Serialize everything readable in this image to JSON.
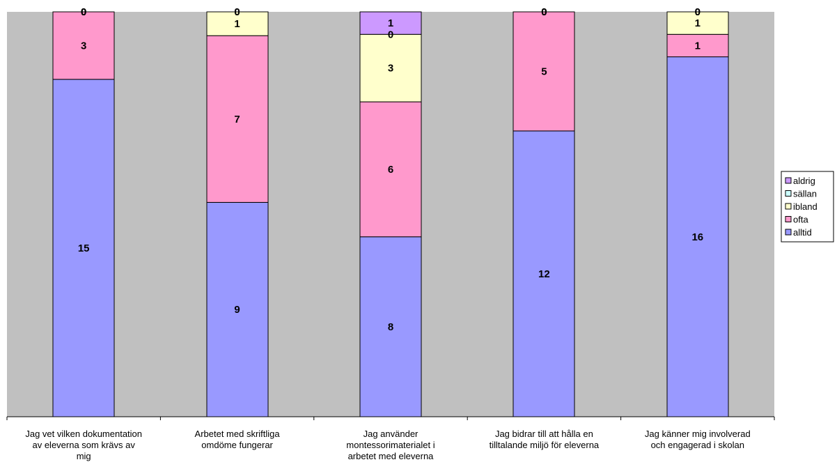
{
  "chart_data": {
    "type": "bar",
    "stacked": true,
    "categories": [
      [
        "Jag vet vilken dokumentation",
        "av eleverna som krävs av",
        "mig"
      ],
      [
        "Arbetet med skriftliga",
        "omdöme fungerar"
      ],
      [
        "Jag använder",
        "montessorimaterialet i",
        "arbetet med eleverna"
      ],
      [
        "Jag bidrar till att hålla en",
        "tilltalande miljö för eleverna"
      ],
      [
        "Jag känner mig involverad",
        "och engagerad i skolan"
      ]
    ],
    "series": [
      {
        "name": "alltid",
        "color": "#9999ff",
        "values": [
          15,
          9,
          8,
          12,
          16
        ]
      },
      {
        "name": "ofta",
        "color": "#ff99cc",
        "values": [
          3,
          7,
          6,
          5,
          1
        ]
      },
      {
        "name": "ibland",
        "color": "#ffffcc",
        "values": [
          0,
          1,
          3,
          0,
          1
        ]
      },
      {
        "name": "sällan",
        "color": "#ccffff",
        "values": [
          0,
          0,
          0,
          0,
          0
        ]
      },
      {
        "name": "aldrig",
        "color": "#cc99ff",
        "values": [
          0,
          0,
          1,
          0,
          0
        ]
      }
    ],
    "legend_order": [
      "aldrig",
      "sällan",
      "ibland",
      "ofta",
      "alltid"
    ],
    "legend_position": "right",
    "plot_background": "#c0c0c0",
    "normalized": true,
    "grid": false
  }
}
